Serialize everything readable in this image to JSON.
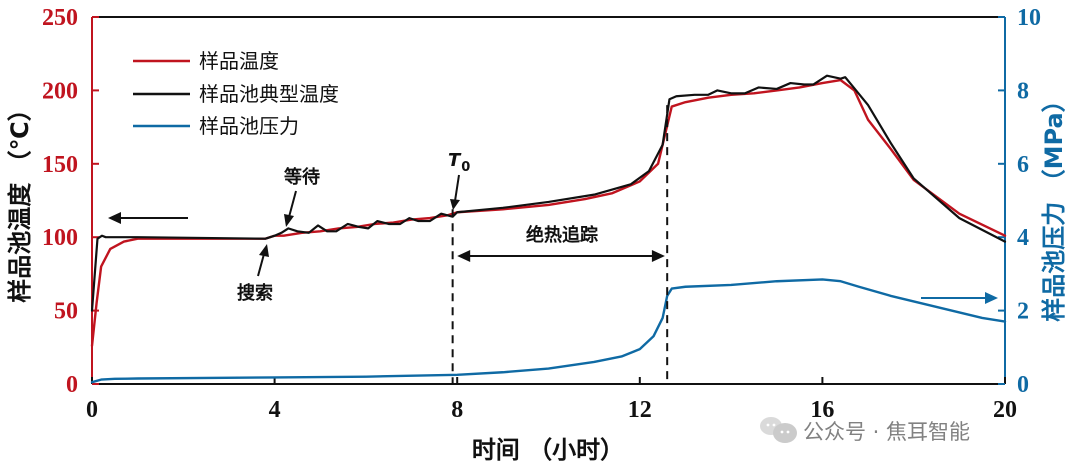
{
  "chart_data": {
    "type": "line",
    "title": "",
    "xlabel": "时间 （小时）",
    "ylabel_left": "样品池温度 （℃）",
    "ylabel_right": "样品池压力 （MPa）",
    "xlim": [
      0,
      20
    ],
    "ylim_left": [
      0,
      250
    ],
    "ylim_right": [
      0,
      10
    ],
    "xticks": [
      0,
      4,
      8,
      12,
      16,
      20
    ],
    "yticks_left": [
      0,
      50,
      100,
      150,
      200,
      250
    ],
    "yticks_right": [
      0,
      2,
      4,
      6,
      8,
      10
    ],
    "grid": false,
    "legend_position": "top-left",
    "colors": {
      "left_axis": "#c0141f",
      "right_axis": "#0f6aa4",
      "x_axis": "#111111",
      "sample_temperature": "#c0141f",
      "cell_typical_temperature": "#111111",
      "cell_pressure": "#0f6aa4"
    },
    "series": [
      {
        "name": "样品温度",
        "axis": "left",
        "x": [
          0,
          0.1,
          0.2,
          0.4,
          0.7,
          1.0,
          3.8,
          4.0,
          4.2,
          4.6,
          5.0,
          5.4,
          5.8,
          6.2,
          6.6,
          7.0,
          7.4,
          7.8,
          8.0,
          9.0,
          10.0,
          10.8,
          11.4,
          12.0,
          12.4,
          12.6,
          12.7,
          13.0,
          13.5,
          14.0,
          14.5,
          15.0,
          15.5,
          16.0,
          16.4,
          16.7,
          17.0,
          17.5,
          18.0,
          19.0,
          20.0
        ],
        "y": [
          26,
          55,
          80,
          92,
          97,
          99,
          99,
          101,
          101,
          103,
          104,
          106,
          107,
          109,
          110,
          112,
          113,
          115,
          117,
          119,
          122,
          126,
          130,
          138,
          150,
          176,
          189,
          192,
          195,
          197,
          198,
          200,
          202,
          205,
          207,
          200,
          180,
          160,
          139,
          116,
          101
        ]
      },
      {
        "name": "样品池典型温度",
        "axis": "left",
        "x": [
          0,
          0.12,
          0.22,
          0.3,
          1.0,
          3.8,
          4.0,
          4.15,
          4.3,
          4.5,
          4.75,
          4.95,
          5.15,
          5.35,
          5.6,
          5.85,
          6.05,
          6.25,
          6.5,
          6.75,
          6.95,
          7.15,
          7.4,
          7.65,
          7.9,
          8.0,
          9.0,
          10.0,
          11.0,
          11.8,
          12.2,
          12.5,
          12.65,
          12.8,
          13.2,
          13.5,
          13.7,
          14.0,
          14.3,
          14.6,
          15.0,
          15.3,
          15.6,
          15.8,
          16.1,
          16.4,
          16.5,
          17.0,
          17.5,
          18.0,
          19.0,
          20.0
        ],
        "y": [
          50,
          99,
          101,
          100,
          100,
          99,
          101,
          103,
          106,
          104,
          103,
          108,
          104,
          104,
          109,
          107,
          106,
          111,
          109,
          109,
          113,
          111,
          111,
          116,
          114,
          117,
          120,
          124,
          129,
          136,
          145,
          163,
          194,
          196,
          197,
          197,
          200,
          198,
          198,
          202,
          201,
          205,
          204,
          204,
          210,
          208,
          209,
          190,
          164,
          140,
          113,
          97
        ]
      },
      {
        "name": "样品池压力",
        "axis": "right",
        "x": [
          0,
          0.2,
          0.5,
          1,
          4,
          6,
          8,
          9,
          10,
          11,
          11.6,
          12.0,
          12.3,
          12.5,
          12.6,
          12.7,
          13.0,
          14.0,
          15.0,
          16.0,
          16.4,
          16.8,
          17.5,
          18.5,
          19.5,
          20.0
        ],
        "y": [
          0.05,
          0.12,
          0.14,
          0.15,
          0.18,
          0.2,
          0.25,
          0.32,
          0.42,
          0.6,
          0.75,
          0.95,
          1.3,
          1.8,
          2.4,
          2.6,
          2.65,
          2.7,
          2.8,
          2.85,
          2.8,
          2.65,
          2.4,
          2.1,
          1.8,
          1.7
        ]
      }
    ],
    "annotations": {
      "search": "搜索",
      "wait": "等待",
      "t0_main": "T",
      "t0_sub": "0",
      "adiabatic": "绝热追踪"
    }
  },
  "watermark": {
    "text": "公众号 · 焦耳智能"
  }
}
